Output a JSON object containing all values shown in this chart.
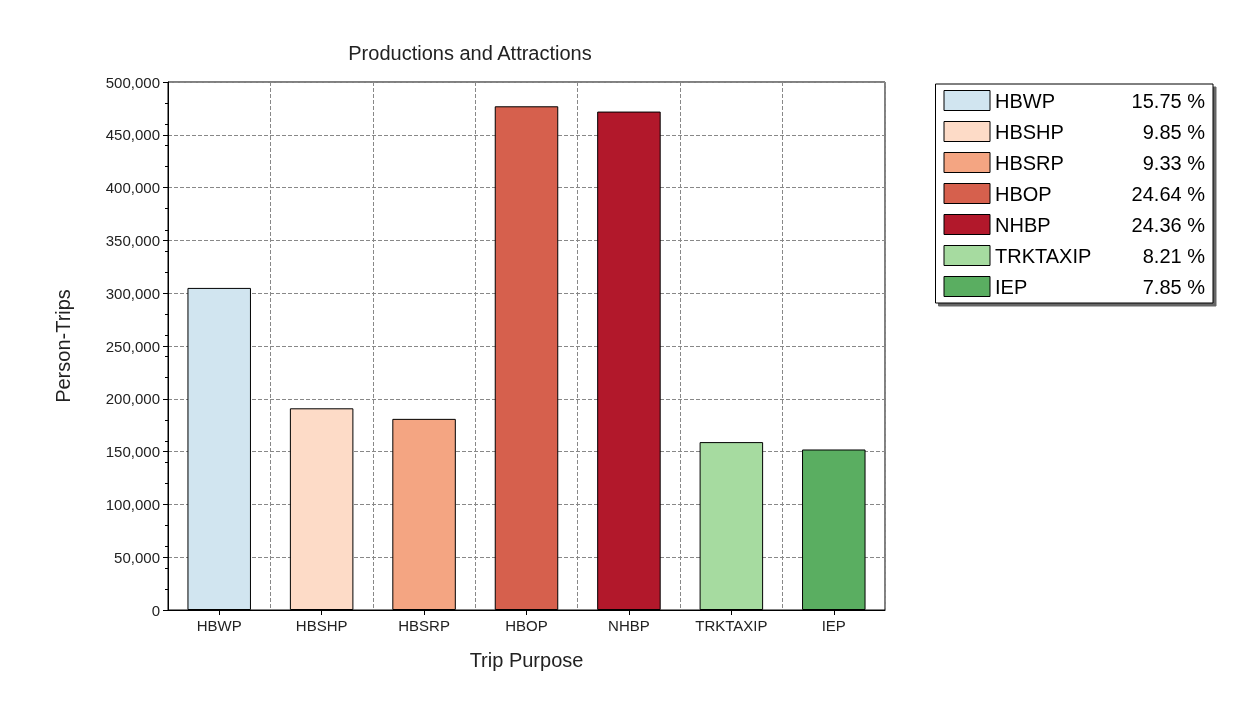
{
  "chart_data": {
    "type": "bar",
    "title": "Productions and Attractions",
    "xlabel": "Trip Purpose",
    "ylabel": "Person-Trips",
    "categories": [
      "HBWP",
      "HBSHP",
      "HBSRP",
      "HBOP",
      "NHBP",
      "TRKTAXIP",
      "IEP"
    ],
    "series": [
      {
        "name": "HBWP",
        "color": "#d1e5f0",
        "values": [
          305000,
          null,
          null,
          null,
          null,
          null,
          null
        ]
      },
      {
        "name": "HBSHP",
        "color": "#fddbc7",
        "values": [
          null,
          191000,
          null,
          null,
          null,
          null,
          null
        ]
      },
      {
        "name": "HBSRP",
        "color": "#f4a582",
        "values": [
          null,
          null,
          181000,
          null,
          null,
          null,
          null
        ]
      },
      {
        "name": "HBOP",
        "color": "#d6604d",
        "values": [
          null,
          null,
          null,
          477000,
          null,
          null,
          null
        ]
      },
      {
        "name": "NHBP",
        "color": "#b2182b",
        "values": [
          null,
          null,
          null,
          null,
          472000,
          null,
          null
        ]
      },
      {
        "name": "TRKTAXIP",
        "color": "#a6dba0",
        "values": [
          null,
          null,
          null,
          null,
          null,
          159000,
          null
        ]
      },
      {
        "name": "IEP",
        "color": "#5aae61",
        "values": [
          null,
          null,
          null,
          null,
          null,
          null,
          152000
        ]
      }
    ],
    "annotations": [
      "15.75 %",
      "9.85 %",
      "9.33 %",
      "24.64 %",
      "24.36 %",
      "8.21 %",
      "7.85 %"
    ],
    "ylim": [
      0,
      500000
    ],
    "yticks": [
      0,
      {
        "value": 50000,
        "label": "50,000"
      },
      {
        "value": 100000,
        "label": "100,000"
      },
      {
        "value": 150000,
        "label": "150,000"
      },
      {
        "value": 200000,
        "label": "200,000"
      },
      {
        "value": 250000,
        "label": "250,000"
      },
      {
        "value": 300000,
        "label": "300,000"
      },
      {
        "value": 350000,
        "label": "350,000"
      },
      {
        "value": 400000,
        "label": "400,000"
      },
      {
        "value": 450000,
        "label": "450,000"
      },
      {
        "value": 500000,
        "label": "500,000"
      }
    ],
    "grid": true,
    "legend": "top right"
  }
}
